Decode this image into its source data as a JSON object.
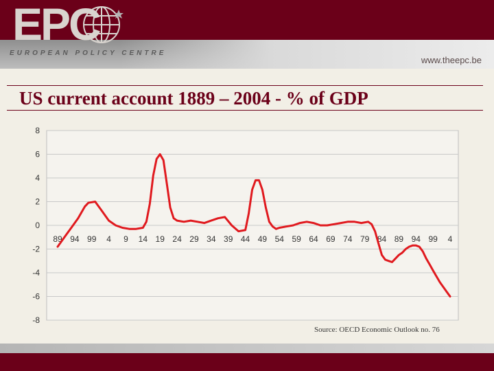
{
  "header": {
    "logo_text": "EPC",
    "logo_subtitle": "EUROPEAN POLICY CENTRE",
    "url": "www.theepc.be"
  },
  "title": "US current account 1889 – 2004 - % of GDP",
  "source": "Source: OECD Economic Outlook no. 76",
  "colors": {
    "brand": "#6b0019",
    "line": "#e0191e",
    "grid": "#c8c8c8",
    "background": "#f2efe6"
  },
  "chart_data": {
    "type": "line",
    "title": "US current account 1889 – 2004 - % of GDP",
    "xlabel": "",
    "ylabel": "",
    "ylim": [
      -8,
      8
    ],
    "yticks": [
      -8,
      -6,
      -4,
      -2,
      0,
      2,
      4,
      6,
      8
    ],
    "xlim": [
      1889,
      2004
    ],
    "grid": true,
    "legend": "none",
    "tick_labels_x": [
      "89",
      "94",
      "99",
      "4",
      "9",
      "14",
      "19",
      "24",
      "29",
      "34",
      "39",
      "44",
      "49",
      "54",
      "59",
      "64",
      "69",
      "74",
      "79",
      "84",
      "89",
      "94",
      "99",
      "4"
    ],
    "tick_years_x": [
      1889,
      1894,
      1899,
      1904,
      1909,
      1914,
      1919,
      1924,
      1929,
      1934,
      1939,
      1944,
      1949,
      1954,
      1959,
      1964,
      1969,
      1974,
      1979,
      1984,
      1989,
      1994,
      1999,
      2004
    ],
    "series": [
      {
        "x": [
          1889,
          1891,
          1893,
          1895,
          1897,
          1898,
          1900,
          1902,
          1904,
          1906,
          1908,
          1910,
          1912,
          1914,
          1915,
          1916,
          1917,
          1918,
          1919,
          1920,
          1921,
          1922,
          1923,
          1924,
          1926,
          1928,
          1930,
          1932,
          1934,
          1936,
          1938,
          1940,
          1942,
          1944,
          1945,
          1946,
          1947,
          1948,
          1949,
          1950,
          1951,
          1952,
          1953,
          1954,
          1956,
          1958,
          1960,
          1962,
          1964,
          1966,
          1968,
          1970,
          1972,
          1974,
          1976,
          1978,
          1980,
          1981,
          1982,
          1983,
          1984,
          1985,
          1986,
          1987,
          1988,
          1989,
          1990,
          1991,
          1992,
          1993,
          1994,
          1995,
          1996,
          1997,
          1998,
          1999,
          2000,
          2001,
          2002,
          2003,
          2004
        ],
        "y": [
          -1.8,
          -1.0,
          -0.2,
          0.6,
          1.6,
          1.9,
          2.0,
          1.2,
          0.4,
          0.0,
          -0.2,
          -0.3,
          -0.3,
          -0.2,
          0.3,
          1.8,
          4.2,
          5.6,
          6.0,
          5.5,
          3.5,
          1.5,
          0.6,
          0.4,
          0.3,
          0.4,
          0.3,
          0.2,
          0.4,
          0.6,
          0.7,
          0.0,
          -0.5,
          -0.4,
          1.0,
          3.0,
          3.8,
          3.8,
          3.0,
          1.5,
          0.3,
          -0.1,
          -0.3,
          -0.2,
          -0.1,
          0.0,
          0.2,
          0.3,
          0.2,
          0.0,
          0.0,
          0.1,
          0.2,
          0.3,
          0.3,
          0.2,
          0.3,
          0.1,
          -0.5,
          -1.5,
          -2.5,
          -2.9,
          -3.0,
          -3.1,
          -2.8,
          -2.5,
          -2.3,
          -2.0,
          -1.8,
          -1.7,
          -1.7,
          -1.8,
          -2.2,
          -2.8,
          -3.3,
          -3.8,
          -4.3,
          -4.8,
          -5.2,
          -5.6,
          -6.0
        ]
      }
    ]
  }
}
